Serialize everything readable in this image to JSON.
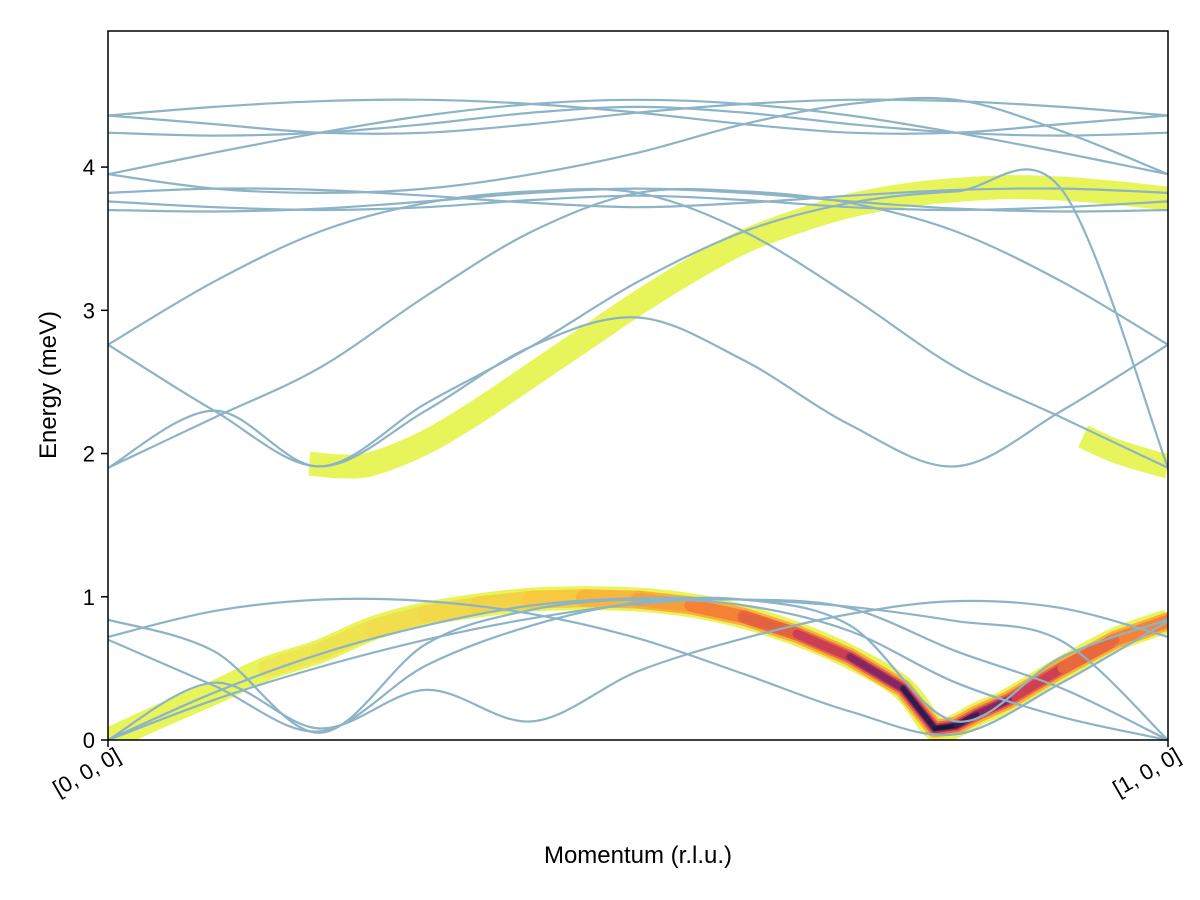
{
  "chart_data": {
    "type": "line",
    "title": "",
    "xlabel": "Momentum (r.l.u.)",
    "ylabel": "Energy (meV)",
    "xlim": [
      0,
      1
    ],
    "ylim": [
      0,
      4.95
    ],
    "x_ticks": [
      {
        "value": 0,
        "label": "[0, 0, 0]"
      },
      {
        "value": 1,
        "label": "[1, 0, 0]"
      }
    ],
    "y_ticks": [
      {
        "value": 0,
        "label": "0"
      },
      {
        "value": 1,
        "label": "1"
      },
      {
        "value": 2,
        "label": "2"
      },
      {
        "value": 3,
        "label": "3"
      },
      {
        "value": 4,
        "label": "4"
      }
    ],
    "grid": false,
    "legend": "none",
    "band_color": "#8db3c6",
    "intensity_colormap": [
      "#e8f55a",
      "#f9c23c",
      "#f47a34",
      "#c8365a",
      "#5c1f6a",
      "#0e1a2e"
    ],
    "band_sample_x": [
      0,
      0.1,
      0.2,
      0.3,
      0.4,
      0.5,
      0.6,
      0.7,
      0.8,
      0.9,
      1.0
    ],
    "bands": [
      {
        "values": [
          0.0,
          0.28,
          0.51,
          0.7,
          0.85,
          0.95,
          0.98,
          0.92,
          0.62,
          0.36,
          0.0
        ]
      },
      {
        "values": [
          0.0,
          0.33,
          0.6,
          0.8,
          0.94,
          0.99,
          0.98,
          0.93,
          0.83,
          0.69,
          0.0
        ]
      },
      {
        "values": [
          0.72,
          0.9,
          0.98,
          0.97,
          0.88,
          0.71,
          0.46,
          0.2,
          0.04,
          0.4,
          0.83
        ]
      },
      {
        "values": [
          0.84,
          0.62,
          0.05,
          0.67,
          0.91,
          0.98,
          0.94,
          0.76,
          0.4,
          0.16,
          0.0
        ]
      },
      {
        "values": [
          0.0,
          0.4,
          0.08,
          0.35,
          0.13,
          0.48,
          0.71,
          0.88,
          0.97,
          0.92,
          0.72
        ]
      },
      {
        "values": [
          0.7,
          0.38,
          0.06,
          0.52,
          0.8,
          0.96,
          0.98,
          0.8,
          0.13,
          0.58,
          0.84
        ]
      },
      {
        "values": [
          1.9,
          2.3,
          1.91,
          2.35,
          2.75,
          3.2,
          3.55,
          3.75,
          3.83,
          3.84,
          1.9
        ]
      },
      {
        "values": [
          2.76,
          3.2,
          3.55,
          3.75,
          3.83,
          3.82,
          3.55,
          3.1,
          2.6,
          2.25,
          1.9
        ]
      },
      {
        "values": [
          1.9,
          2.25,
          2.6,
          3.1,
          3.55,
          3.82,
          3.83,
          3.75,
          3.55,
          3.2,
          2.76
        ]
      },
      {
        "values": [
          2.76,
          2.3,
          1.91,
          2.3,
          2.75,
          2.95,
          2.65,
          2.2,
          1.91,
          2.3,
          2.76
        ]
      },
      {
        "values": [
          3.7,
          3.69,
          3.71,
          3.76,
          3.82,
          3.85,
          3.82,
          3.76,
          3.71,
          3.69,
          3.7
        ]
      },
      {
        "values": [
          3.76,
          3.72,
          3.7,
          3.72,
          3.77,
          3.8,
          3.77,
          3.72,
          3.7,
          3.72,
          3.76
        ]
      },
      {
        "values": [
          3.82,
          3.85,
          3.84,
          3.8,
          3.75,
          3.72,
          3.75,
          3.8,
          3.84,
          3.85,
          3.82
        ]
      },
      {
        "values": [
          3.95,
          4.1,
          4.24,
          4.36,
          4.44,
          4.47,
          4.44,
          4.36,
          4.24,
          4.1,
          3.95
        ]
      },
      {
        "values": [
          3.95,
          3.85,
          3.82,
          3.85,
          3.95,
          4.1,
          4.3,
          4.44,
          4.47,
          4.25,
          3.95
        ]
      },
      {
        "values": [
          4.24,
          4.22,
          4.24,
          4.3,
          4.38,
          4.42,
          4.38,
          4.3,
          4.24,
          4.22,
          4.24
        ]
      },
      {
        "values": [
          4.36,
          4.42,
          4.46,
          4.47,
          4.44,
          4.38,
          4.3,
          4.24,
          4.24,
          4.3,
          4.36
        ]
      },
      {
        "values": [
          4.36,
          4.3,
          4.24,
          4.24,
          4.3,
          4.38,
          4.44,
          4.47,
          4.46,
          4.42,
          4.36
        ]
      }
    ],
    "intensity_bands": [
      {
        "x": [
          0.0,
          0.05,
          0.1,
          0.15,
          0.2,
          0.25,
          0.3,
          0.35,
          0.4,
          0.45,
          0.5,
          0.55,
          0.6,
          0.65,
          0.7,
          0.75,
          0.78,
          0.8,
          0.82,
          0.85,
          0.9,
          0.95,
          1.0
        ],
        "y": [
          0.0,
          0.17,
          0.33,
          0.5,
          0.62,
          0.78,
          0.88,
          0.94,
          0.98,
          0.99,
          0.98,
          0.94,
          0.86,
          0.74,
          0.58,
          0.36,
          0.08,
          0.1,
          0.18,
          0.28,
          0.5,
          0.7,
          0.83
        ],
        "peak": [
          0.0,
          0.02,
          0.04,
          0.05,
          0.06,
          0.08,
          0.1,
          0.12,
          0.15,
          0.2,
          0.26,
          0.34,
          0.42,
          0.52,
          0.64,
          0.82,
          1.0,
          0.95,
          0.8,
          0.65,
          0.5,
          0.4,
          0.35
        ]
      },
      {
        "x": [
          0.19,
          0.22,
          0.25,
          0.3,
          0.35,
          0.4,
          0.45,
          0.5,
          0.55,
          0.6,
          0.65,
          0.7,
          0.75,
          0.8,
          0.85,
          0.9,
          0.95,
          1.0
        ],
        "y": [
          1.93,
          1.91,
          1.93,
          2.08,
          2.3,
          2.55,
          2.8,
          3.05,
          3.28,
          3.48,
          3.62,
          3.73,
          3.8,
          3.84,
          3.86,
          3.85,
          3.82,
          3.78
        ],
        "peak": [
          0.0,
          0.0,
          0.0,
          0.0,
          0.0,
          0.0,
          0.0,
          0.0,
          0.0,
          0.0,
          0.0,
          0.0,
          0.0,
          0.0,
          0.0,
          0.0,
          0.0,
          0.0
        ]
      },
      {
        "x": [
          0.92,
          0.95,
          0.98,
          1.0
        ],
        "y": [
          2.12,
          2.02,
          1.95,
          1.91
        ],
        "peak": [
          0.0,
          0.0,
          0.0,
          0.0
        ]
      }
    ]
  }
}
